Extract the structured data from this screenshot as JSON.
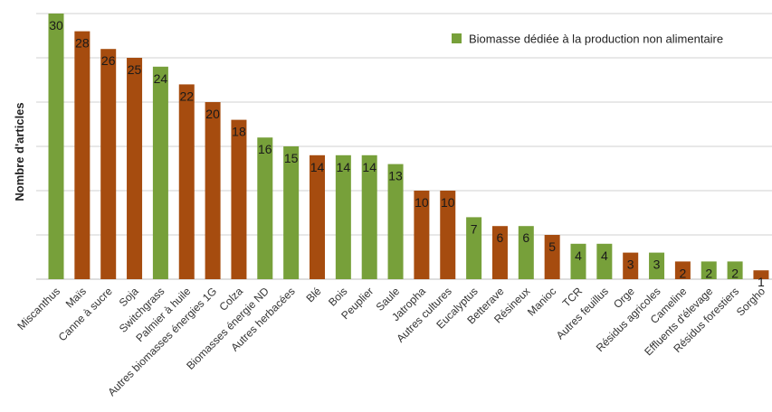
{
  "chart_data": {
    "type": "bar",
    "ylabel": "Nombre d'articles",
    "xlabel": "",
    "ylim": [
      0,
      30
    ],
    "grid": true,
    "legend": {
      "placement": "top-right",
      "entries": [
        {
          "label": "Biomasse dédiée à la production non alimentaire",
          "color": "#77a03a"
        }
      ]
    },
    "categories": [
      "Miscanthus",
      "Maïs",
      "Canne à sucre",
      "Soja",
      "Switchgrass",
      "Palmier à huile",
      "Autres biomasses énergies 1G",
      "Colza",
      "Biomasses énergie ND",
      "Autres herbacées",
      "Blé",
      "Bois",
      "Peuplier",
      "Saule",
      "Jatropha",
      "Autres cultures",
      "Eucalyptus",
      "Betterave",
      "Résineux",
      "Manioc",
      "TCR",
      "Autres feuillus",
      "Orge",
      "Résidus agricoles",
      "Cameline",
      "Effluents d'élevage",
      "Résidus forestiers",
      "Sorgho"
    ],
    "values": [
      30,
      28,
      26,
      25,
      24,
      22,
      20,
      18,
      16,
      15,
      14,
      14,
      14,
      13,
      10,
      10,
      7,
      6,
      6,
      5,
      4,
      4,
      3,
      3,
      2,
      2,
      2,
      1
    ],
    "value_labels": [
      "30",
      "28",
      "26",
      "25",
      "24",
      "22",
      "20",
      "18",
      "16",
      "15",
      "14",
      "14",
      "14",
      "13",
      "10",
      "10",
      "7",
      "6",
      "6",
      "5",
      "4",
      "4",
      "3",
      "3",
      "2",
      "2",
      "2",
      "1"
    ],
    "bar_colors": [
      "#77a03a",
      "#a64c0f",
      "#a64c0f",
      "#a64c0f",
      "#77a03a",
      "#a64c0f",
      "#a64c0f",
      "#a64c0f",
      "#77a03a",
      "#77a03a",
      "#a64c0f",
      "#77a03a",
      "#77a03a",
      "#77a03a",
      "#a64c0f",
      "#a64c0f",
      "#77a03a",
      "#a64c0f",
      "#77a03a",
      "#a64c0f",
      "#77a03a",
      "#77a03a",
      "#a64c0f",
      "#77a03a",
      "#a64c0f",
      "#77a03a",
      "#77a03a",
      "#a64c0f"
    ],
    "colors": {
      "green": "#77a03a",
      "brown": "#a64c0f"
    }
  }
}
